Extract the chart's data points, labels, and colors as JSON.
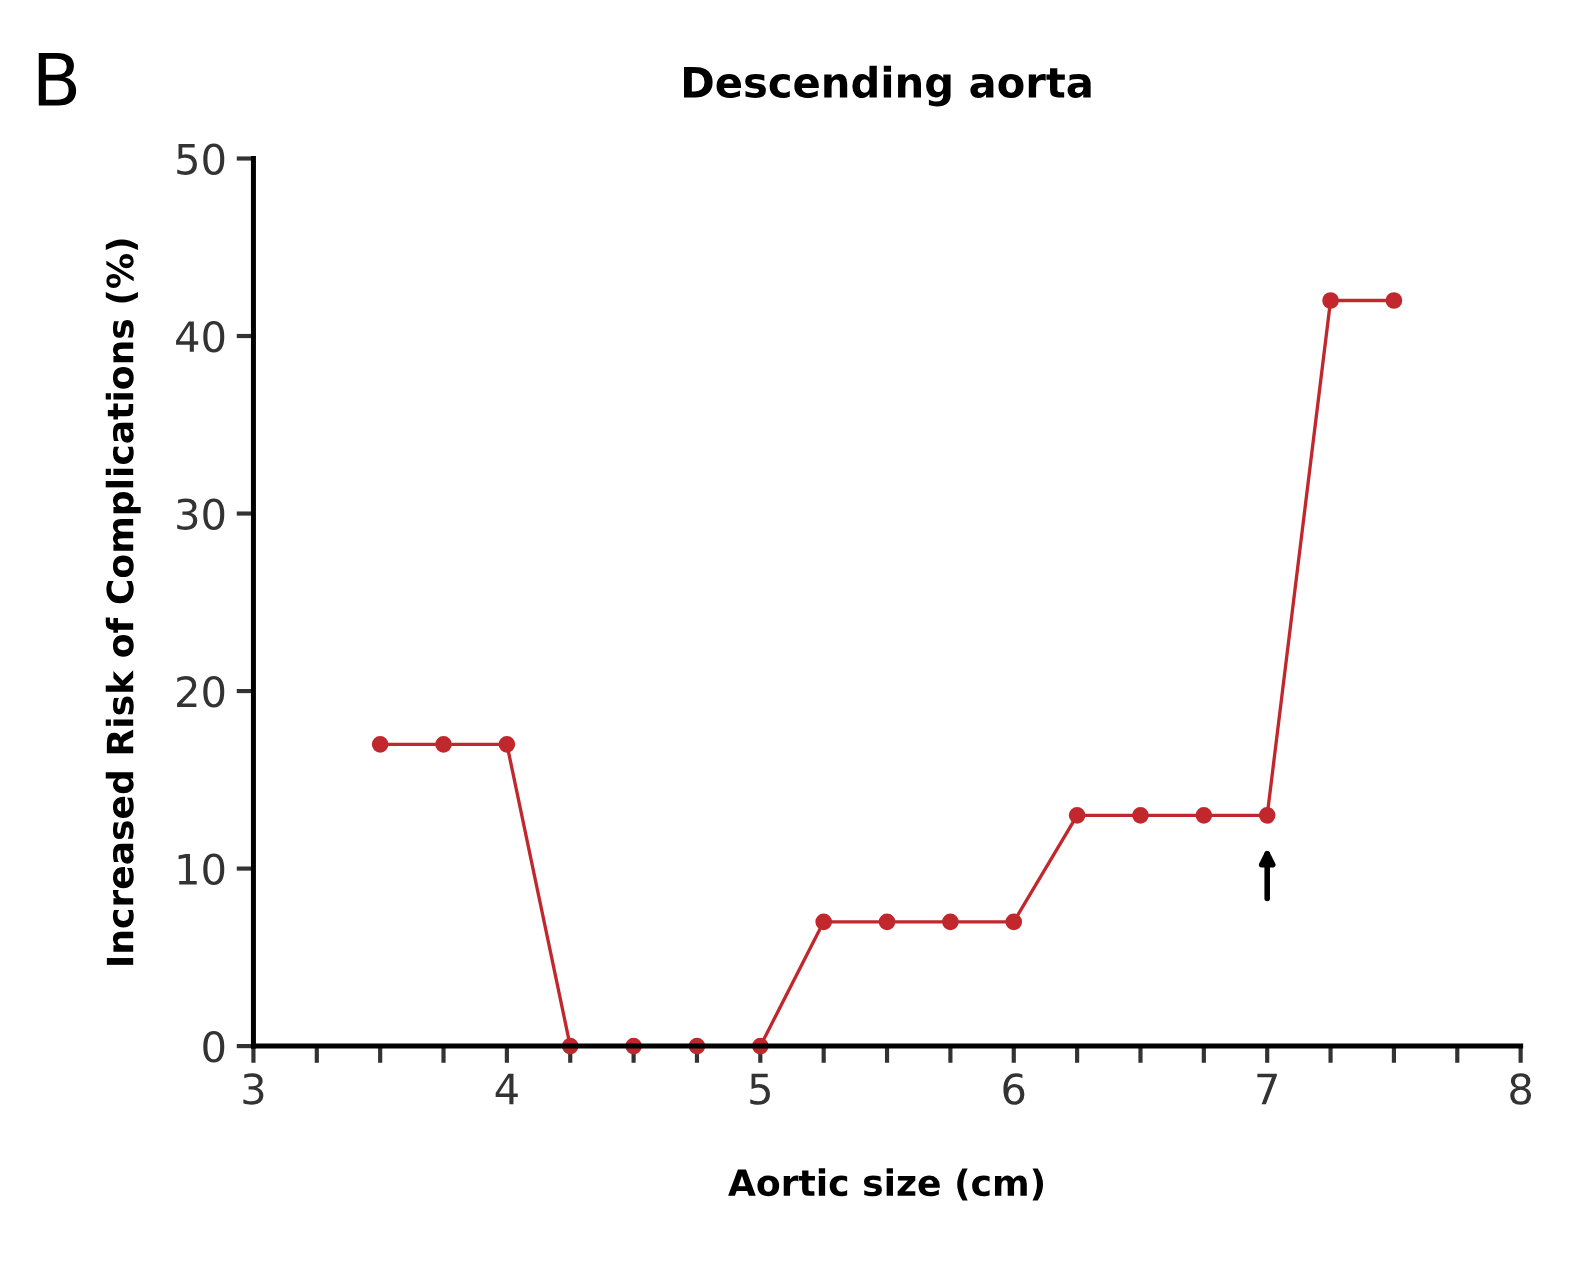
{
  "chart_data": {
    "type": "line",
    "title": "Descending aorta",
    "xlabel": "Aortic size (cm)",
    "ylabel": "Increased Risk of Complications (%)",
    "x": [
      3.5,
      3.75,
      4.0,
      4.25,
      4.5,
      4.75,
      5.0,
      5.25,
      5.5,
      5.75,
      6.0,
      6.25,
      6.5,
      6.75,
      7.0,
      7.25,
      7.5
    ],
    "series": [
      {
        "color": "#c0282d",
        "values": [
          17,
          17,
          17,
          0,
          0,
          0,
          0,
          7,
          7,
          7,
          7,
          13,
          13,
          13,
          13,
          42,
          42
        ]
      }
    ],
    "marker": "circle",
    "line_style": "solid",
    "grid": false,
    "legend": false,
    "xlim": [
      3,
      8
    ],
    "ylim": [
      0,
      50
    ],
    "yticks": [
      0,
      10,
      20,
      30,
      40,
      50
    ],
    "xticks": [
      3,
      {
        "value": 3.25,
        "label": null
      },
      {
        "value": 3.5,
        "label": null
      },
      {
        "value": 3.75,
        "label": null
      },
      4,
      {
        "value": 4.25,
        "label": null
      },
      {
        "value": 4.5,
        "label": null
      },
      {
        "value": 4.75,
        "label": null
      },
      5,
      {
        "value": 5.25,
        "label": null
      },
      {
        "value": 5.5,
        "label": null
      },
      {
        "value": 5.75,
        "label": null
      },
      6,
      {
        "value": 6.25,
        "label": null
      },
      {
        "value": 6.5,
        "label": null
      },
      {
        "value": 6.75,
        "label": null
      },
      7,
      {
        "value": 7.25,
        "label": null
      },
      {
        "value": 7.5,
        "label": null
      },
      {
        "value": 7.75,
        "label": null
      },
      8
    ],
    "annotations": [
      "B"
    ]
  }
}
